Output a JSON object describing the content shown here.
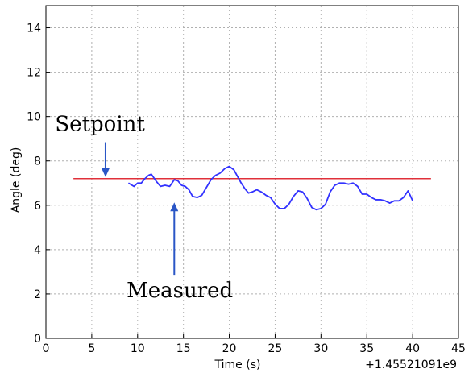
{
  "chart_data": {
    "type": "line",
    "xlabel": "Time (s)",
    "ylabel": "Angle (deg)",
    "x_offset_label": "+1.45521091e9",
    "xlim": [
      0,
      45
    ],
    "ylim": [
      0,
      15
    ],
    "x_ticks": [
      0,
      5,
      10,
      15,
      20,
      25,
      30,
      35,
      40,
      45
    ],
    "y_ticks": [
      0,
      2,
      4,
      6,
      8,
      10,
      12,
      14
    ],
    "grid": true,
    "series": [
      {
        "color": "#e0303a",
        "x": [
          3,
          42
        ],
        "y": [
          7.2,
          7.2
        ]
      },
      {
        "color": "#3232ff",
        "x": [
          9.0,
          9.6,
          10.0,
          10.4,
          10.8,
          11.2,
          11.5,
          12.0,
          12.5,
          13.0,
          13.5,
          14.0,
          14.4,
          14.8,
          15.2,
          15.6,
          16.0,
          16.5,
          17.0,
          17.5,
          18.0,
          18.5,
          19.0,
          19.5,
          20.0,
          20.5,
          20.9,
          21.3,
          21.7,
          22.1,
          22.5,
          23.0,
          23.5,
          24.0,
          24.5,
          25.0,
          25.5,
          26.0,
          26.5,
          27.0,
          27.5,
          28.0,
          28.5,
          29.0,
          29.5,
          30.0,
          30.5,
          31.0,
          31.5,
          32.0,
          32.5,
          33.0,
          33.5,
          34.0,
          34.5,
          35.0,
          35.5,
          36.0,
          36.5,
          37.0,
          37.5,
          38.0,
          38.5,
          39.0,
          39.5,
          40.0
        ],
        "y": [
          7.0,
          6.85,
          7.0,
          7.0,
          7.2,
          7.35,
          7.4,
          7.1,
          6.85,
          6.9,
          6.85,
          7.15,
          7.1,
          6.9,
          6.85,
          6.7,
          6.4,
          6.35,
          6.45,
          6.8,
          7.15,
          7.35,
          7.45,
          7.65,
          7.75,
          7.6,
          7.3,
          7.0,
          6.75,
          6.55,
          6.6,
          6.7,
          6.6,
          6.45,
          6.35,
          6.05,
          5.85,
          5.85,
          6.05,
          6.4,
          6.65,
          6.6,
          6.3,
          5.9,
          5.8,
          5.85,
          6.05,
          6.6,
          6.9,
          7.0,
          7.0,
          6.95,
          7.0,
          6.85,
          6.5,
          6.5,
          6.35,
          6.25,
          6.25,
          6.2,
          6.1,
          6.2,
          6.2,
          6.35,
          6.65,
          6.2
        ]
      }
    ],
    "annotations": [
      {
        "text": "Setpoint",
        "x": 6.5,
        "y": 7.2,
        "text_x": 1.0,
        "text_y": 9.35
      },
      {
        "text": "Measured",
        "x": 14.0,
        "y": 6.2,
        "text_x": 8.8,
        "text_y": 1.85
      }
    ]
  }
}
